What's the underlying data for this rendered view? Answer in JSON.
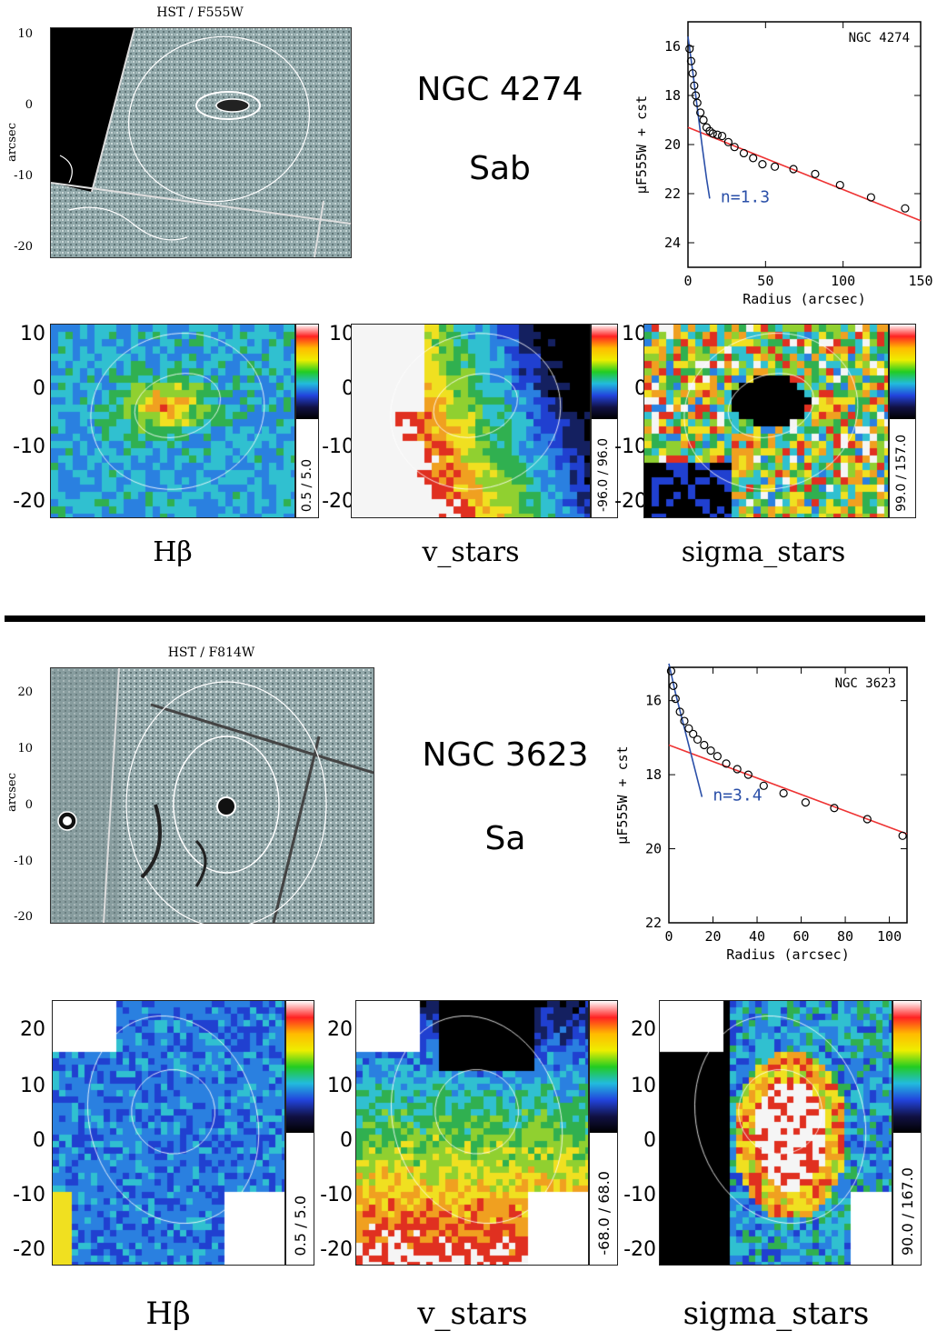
{
  "panels": [
    {
      "hst_title": "HST / F555W",
      "arcsec_label": "arcsec",
      "hst_yticks": [
        "10",
        "0",
        "-10",
        "-20"
      ],
      "galaxy": "NGC 4274",
      "type": "Sab",
      "profile": {
        "label": "NGC 4274",
        "ylabel": "μF555W + cst",
        "xlabel": "Radius (arcsec)",
        "xticks": [
          "0",
          "50",
          "100",
          "150"
        ],
        "yticks": [
          "16",
          "18",
          "20",
          "22",
          "24"
        ],
        "xlim": [
          0,
          150
        ],
        "ylim": [
          15,
          25
        ],
        "sersic_label": "n=1.3",
        "points": [
          [
            1,
            16.1
          ],
          [
            2,
            16.6
          ],
          [
            3,
            17.1
          ],
          [
            4,
            17.6
          ],
          [
            5,
            18.0
          ],
          [
            6,
            18.3
          ],
          [
            8,
            18.7
          ],
          [
            10,
            19.0
          ],
          [
            12,
            19.3
          ],
          [
            14,
            19.45
          ],
          [
            16,
            19.55
          ],
          [
            19,
            19.6
          ],
          [
            22,
            19.65
          ],
          [
            26,
            19.9
          ],
          [
            30,
            20.1
          ],
          [
            36,
            20.35
          ],
          [
            42,
            20.55
          ],
          [
            48,
            20.8
          ],
          [
            56,
            20.9
          ],
          [
            68,
            21.0
          ],
          [
            82,
            21.2
          ],
          [
            98,
            21.65
          ],
          [
            118,
            22.15
          ],
          [
            140,
            22.6
          ]
        ],
        "disk_line": [
          [
            0,
            19.3
          ],
          [
            150,
            23.1
          ]
        ],
        "bulge_curve": [
          [
            0,
            15.6
          ],
          [
            3,
            17.0
          ],
          [
            6,
            18.5
          ],
          [
            9,
            20.0
          ],
          [
            12,
            21.4
          ],
          [
            14,
            22.2
          ]
        ]
      },
      "map_yticks": [
        "10",
        "0",
        "-10",
        "-20"
      ],
      "maps": [
        {
          "label": "Hβ",
          "range": "0.5 / 5.0"
        },
        {
          "label": "v_stars",
          "range": "-96.0 / 96.0"
        },
        {
          "label": "sigma_stars",
          "range": "99.0 / 157.0"
        }
      ]
    },
    {
      "hst_title": "HST / F814W",
      "arcsec_label": "arcsec",
      "hst_yticks": [
        "20",
        "10",
        "0",
        "-10",
        "-20"
      ],
      "galaxy": "NGC 3623",
      "type": "Sa",
      "profile": {
        "label": "NGC 3623",
        "ylabel": "μF555W + cst",
        "xlabel": "Radius (arcsec)",
        "xticks": [
          "0",
          "20",
          "40",
          "60",
          "80",
          "100"
        ],
        "yticks": [
          "16",
          "18",
          "20",
          "22"
        ],
        "xlim": [
          0,
          108
        ],
        "ylim": [
          15.1,
          22
        ],
        "sersic_label": "n=3.4",
        "points": [
          [
            1,
            15.2
          ],
          [
            2,
            15.6
          ],
          [
            3,
            15.95
          ],
          [
            5,
            16.3
          ],
          [
            7,
            16.55
          ],
          [
            9,
            16.75
          ],
          [
            11,
            16.9
          ],
          [
            13,
            17.05
          ],
          [
            16,
            17.2
          ],
          [
            19,
            17.35
          ],
          [
            22,
            17.5
          ],
          [
            26,
            17.7
          ],
          [
            31,
            17.85
          ],
          [
            36,
            18.0
          ],
          [
            43,
            18.3
          ],
          [
            52,
            18.5
          ],
          [
            62,
            18.75
          ],
          [
            75,
            18.9
          ],
          [
            90,
            19.2
          ],
          [
            106,
            19.65
          ]
        ],
        "disk_line": [
          [
            0,
            17.2
          ],
          [
            108,
            19.6
          ]
        ],
        "bulge_curve": [
          [
            0,
            15.0
          ],
          [
            3,
            15.8
          ],
          [
            6,
            16.5
          ],
          [
            9,
            17.2
          ],
          [
            12,
            17.9
          ],
          [
            15,
            18.6
          ]
        ]
      },
      "map_yticks": [
        "20",
        "10",
        "0",
        "-10",
        "-20"
      ],
      "maps": [
        {
          "label": "Hβ",
          "range": "0.5 / 5.0"
        },
        {
          "label": "v_stars",
          "range": "-68.0 / 68.0"
        },
        {
          "label": "sigma_stars",
          "range": "90.0 / 167.0"
        }
      ]
    }
  ]
}
